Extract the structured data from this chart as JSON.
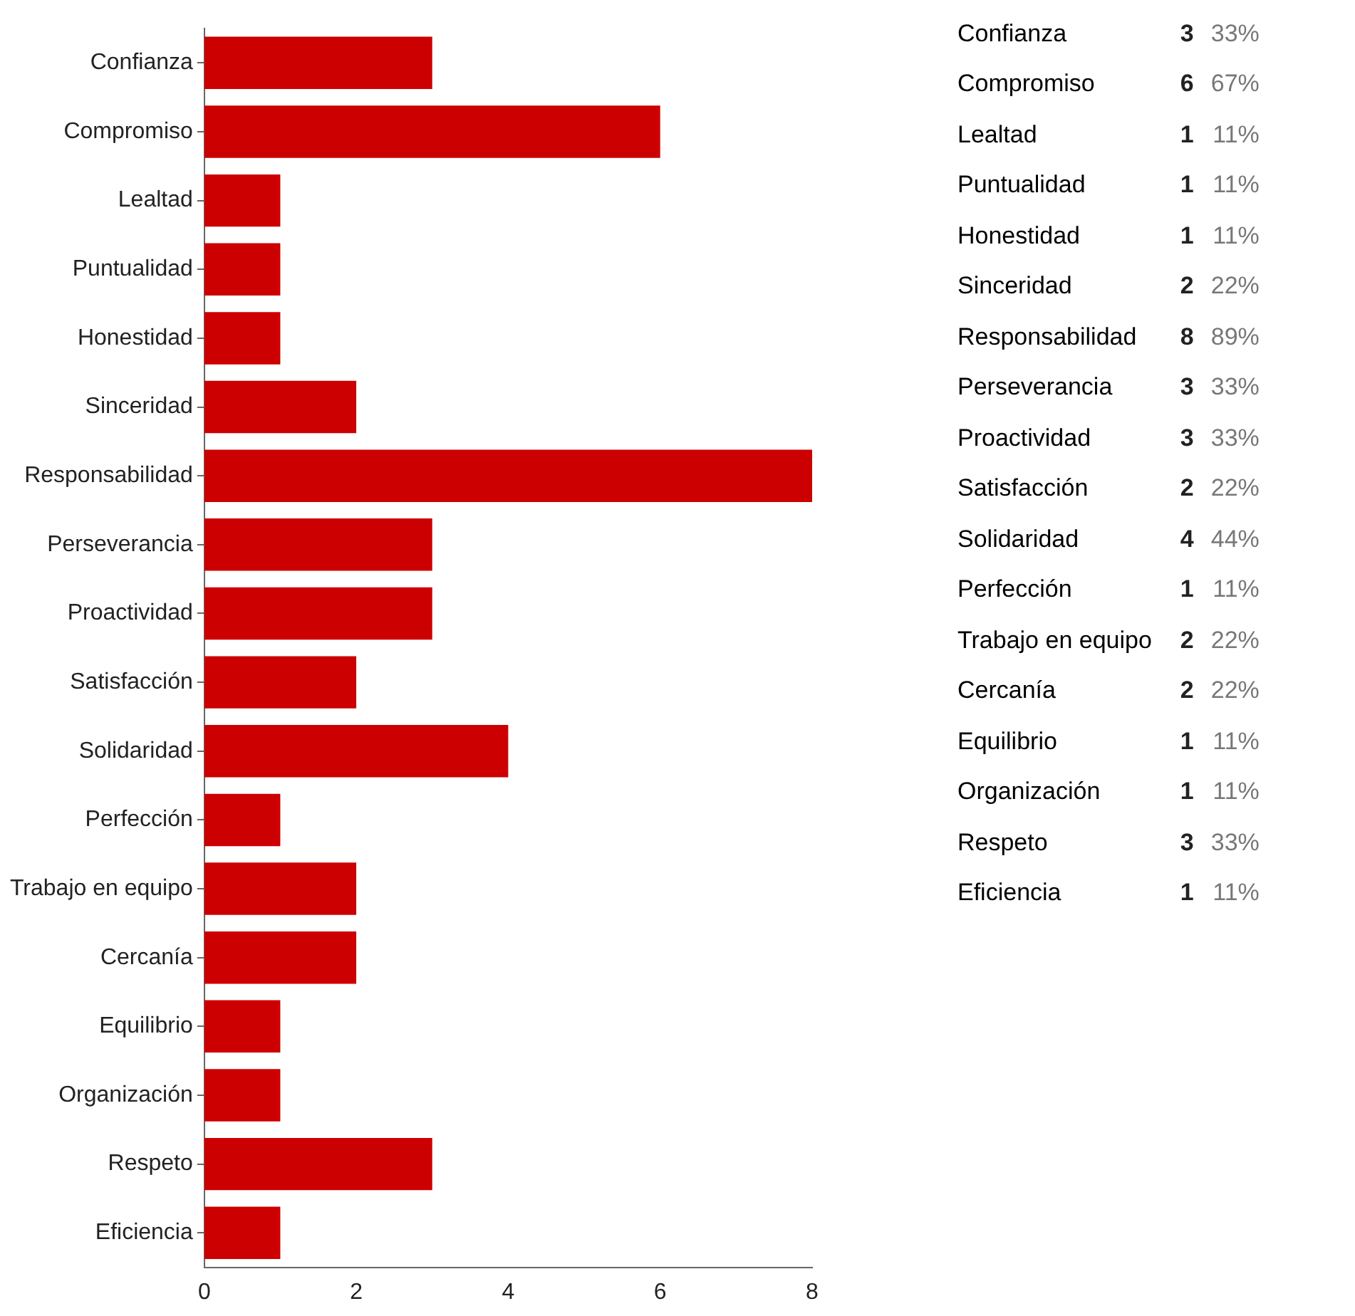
{
  "chart_data": {
    "type": "bar",
    "orientation": "horizontal",
    "categories": [
      "Confianza",
      "Compromiso",
      "Lealtad",
      "Puntualidad",
      "Honestidad",
      "Sinceridad",
      "Responsabilidad",
      "Perseverancia",
      "Proactividad",
      "Satisfacción",
      "Solidaridad",
      "Perfección",
      "Trabajo en equipo",
      "Cercanía",
      "Equilibrio",
      "Organización",
      "Respeto",
      "Eficiencia"
    ],
    "values": [
      3,
      6,
      1,
      1,
      1,
      2,
      8,
      3,
      3,
      2,
      4,
      1,
      2,
      2,
      1,
      1,
      3,
      1
    ],
    "color": "#cc0000",
    "xlim": [
      0,
      8
    ],
    "xticks": [
      0,
      2,
      4,
      6,
      8
    ],
    "grid": false,
    "legend": false,
    "annotations": [
      "3",
      "33%",
      "6",
      "67%",
      "1",
      "11%",
      "1",
      "11%",
      "1",
      "11%",
      "2",
      "22%",
      "8",
      "89%",
      "3",
      "33%",
      "3",
      "33%",
      "2",
      "22%",
      "4",
      "44%",
      "1",
      "11%",
      "2",
      "22%",
      "2",
      "22%",
      "1",
      "11%",
      "1",
      "11%",
      "3",
      "33%",
      "1",
      "11%"
    ]
  }
}
